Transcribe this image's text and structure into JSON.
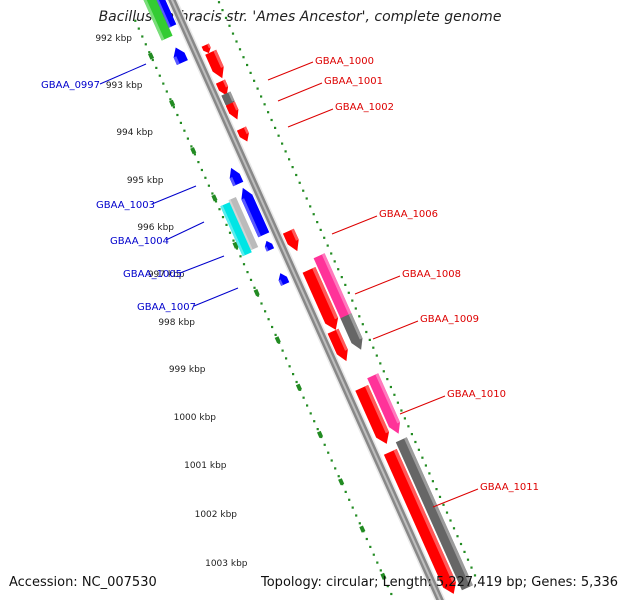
{
  "title": "Bacillus anthracis str. 'Ames Ancestor', complete genome",
  "footer": {
    "accession": "Accession: NC_007530",
    "topology": "Topology: circular; Length: 5,227,419 bp; Genes: 5,336"
  },
  "colors": {
    "forward_gene": "#ff0000",
    "reverse_gene": "#0000ff",
    "pseudo_gene": "#666666",
    "rrna": "#ff3399",
    "cyan_feature": "#00e5e5",
    "green_feature": "#33cc33",
    "backbone": "#888888",
    "scale_dots": "#228b22",
    "reverse_label": "#0000cc",
    "forward_label": "#dd0000"
  },
  "scale": {
    "unit": "kbp",
    "ticks": [
      "992 kbp",
      "993 kbp",
      "994 kbp",
      "995 kbp",
      "996 kbp",
      "997 kbp",
      "998 kbp",
      "999 kbp",
      "1000 kbp",
      "1001 kbp",
      "1002 kbp",
      "1003 kbp"
    ]
  },
  "reverse_labels": [
    "GBAA_0997",
    "GBAA_1003",
    "GBAA_1004",
    "GBAA_1005",
    "GBAA_1007"
  ],
  "forward_labels": [
    "GBAA_1000",
    "GBAA_1001",
    "GBAA_1002",
    "GBAA_1006",
    "GBAA_1008",
    "GBAA_1009",
    "GBAA_1010",
    "GBAA_1011"
  ]
}
